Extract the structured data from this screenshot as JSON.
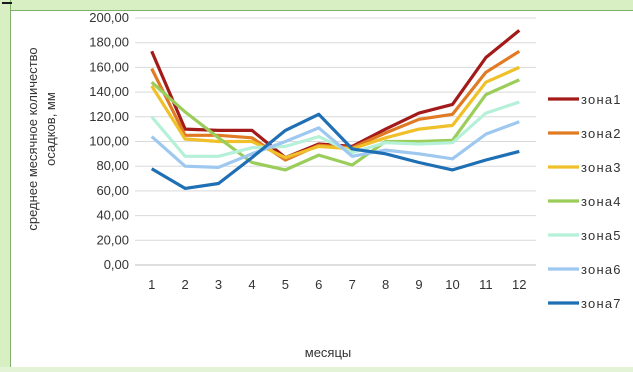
{
  "chart_data": {
    "type": "line",
    "title": "",
    "xlabel": "месяцы",
    "ylabel": "среднее месячное количество осадков, мм",
    "categories": [
      "1",
      "2",
      "3",
      "4",
      "5",
      "6",
      "7",
      "8",
      "9",
      "10",
      "11",
      "12"
    ],
    "y_ticks": [
      "0,00",
      "20,00",
      "40,00",
      "60,00",
      "80,00",
      "100,00",
      "120,00",
      "140,00",
      "160,00",
      "180,00",
      "200,00"
    ],
    "ylim": [
      0,
      200
    ],
    "grid": true,
    "legend_position": "right",
    "series": [
      {
        "name": "зона1",
        "color": "#a31a1a",
        "values": [
          173,
          110,
          109,
          109,
          87,
          98,
          96,
          110,
          123,
          130,
          168,
          190
        ]
      },
      {
        "name": "зона2",
        "color": "#e07b24",
        "values": [
          159,
          105,
          105,
          103,
          85,
          97,
          95,
          107,
          118,
          122,
          156,
          173
        ]
      },
      {
        "name": "зона3",
        "color": "#f0c02a",
        "values": [
          145,
          102,
          100,
          100,
          87,
          96,
          94,
          103,
          110,
          113,
          148,
          160
        ]
      },
      {
        "name": "зона4",
        "color": "#9acd5a",
        "values": [
          148,
          124,
          103,
          83,
          77,
          89,
          81,
          100,
          100,
          101,
          138,
          150
        ]
      },
      {
        "name": "зона5",
        "color": "#b5f0d8",
        "values": [
          120,
          88,
          88,
          95,
          96,
          104,
          91,
          99,
          98,
          99,
          123,
          132
        ]
      },
      {
        "name": "зона6",
        "color": "#9ec8f0",
        "values": [
          104,
          80,
          79,
          90,
          100,
          111,
          88,
          93,
          90,
          86,
          106,
          116
        ]
      },
      {
        "name": "зона7",
        "color": "#1f6fb4",
        "values": [
          78,
          62,
          66,
          87,
          109,
          122,
          94,
          90,
          83,
          77,
          85,
          92
        ]
      }
    ]
  }
}
